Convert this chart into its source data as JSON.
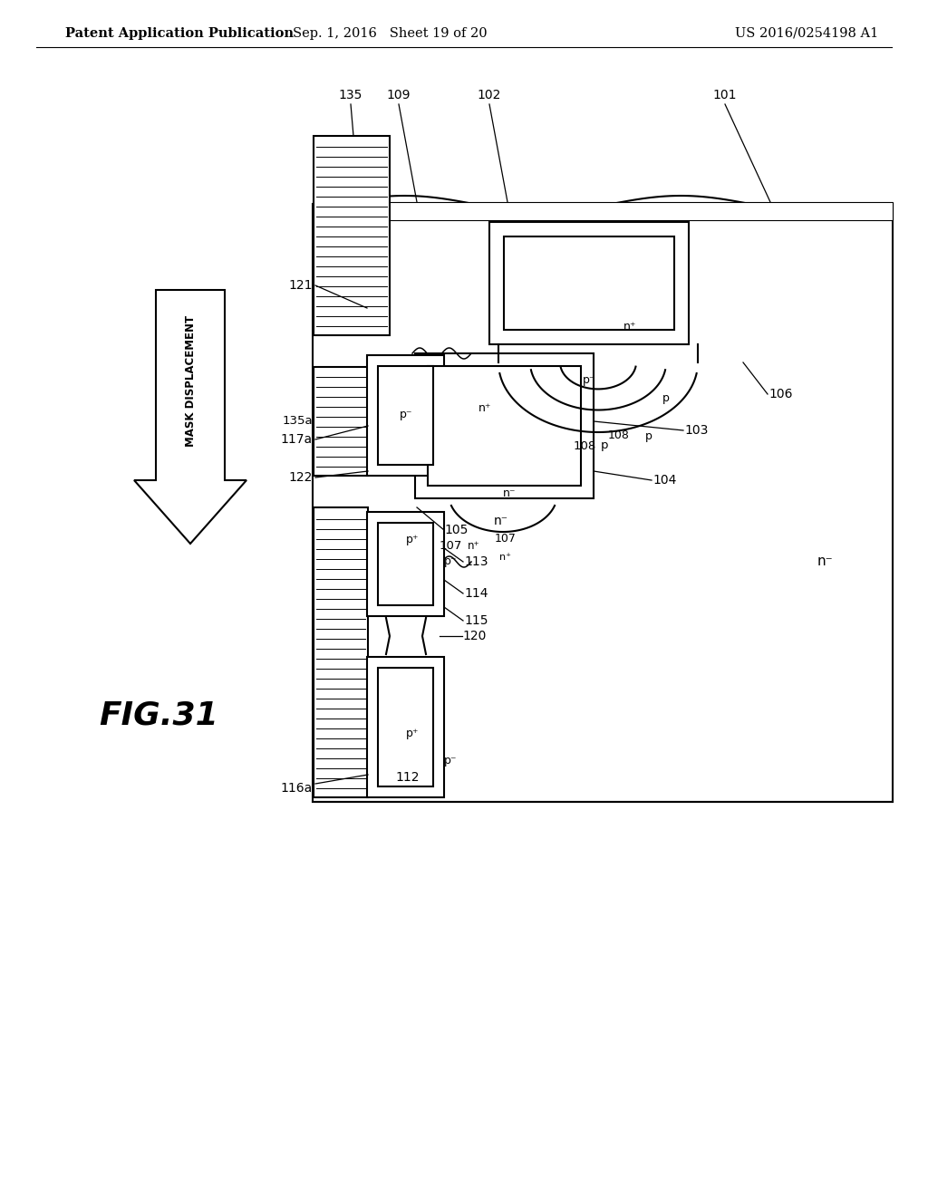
{
  "header_left": "Patent Application Publication",
  "header_mid": "Sep. 1, 2016   Sheet 19 of 20",
  "header_right": "US 2016/0254198 A1",
  "fig_label": "FIG.31",
  "arrow_label": "MASK DISPLACEMENT",
  "bg_color": "#ffffff",
  "line_color": "#000000",
  "lw": 1.5
}
